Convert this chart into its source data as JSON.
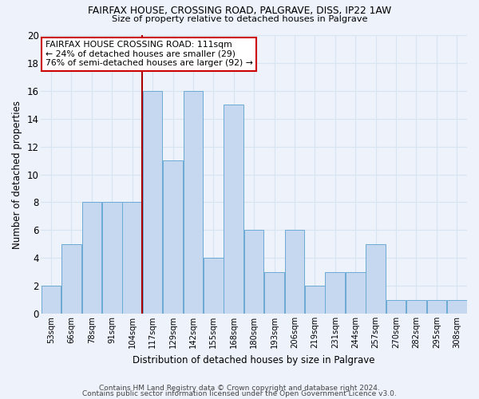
{
  "title1": "FAIRFAX HOUSE, CROSSING ROAD, PALGRAVE, DISS, IP22 1AW",
  "title2": "Size of property relative to detached houses in Palgrave",
  "xlabel": "Distribution of detached houses by size in Palgrave",
  "ylabel": "Number of detached properties",
  "categories": [
    "53sqm",
    "66sqm",
    "78sqm",
    "91sqm",
    "104sqm",
    "117sqm",
    "129sqm",
    "142sqm",
    "155sqm",
    "168sqm",
    "180sqm",
    "193sqm",
    "206sqm",
    "219sqm",
    "231sqm",
    "244sqm",
    "257sqm",
    "270sqm",
    "282sqm",
    "295sqm",
    "308sqm"
  ],
  "values": [
    2,
    5,
    8,
    8,
    8,
    16,
    11,
    16,
    4,
    15,
    6,
    3,
    6,
    2,
    3,
    3,
    5,
    1,
    1,
    1,
    1
  ],
  "bar_color": "#c5d8ef",
  "bar_edge_color": "#6aaad4",
  "background_color": "#edf2fb",
  "grid_color": "#d8e4f0",
  "annotation_text": "FAIRFAX HOUSE CROSSING ROAD: 111sqm\n← 24% of detached houses are smaller (29)\n76% of semi-detached houses are larger (92) →",
  "vline_x": 4.5,
  "vline_color": "#aa0000",
  "annotation_box_color": "#ffffff",
  "annotation_box_edge": "#cc0000",
  "footer1": "Contains HM Land Registry data © Crown copyright and database right 2024.",
  "footer2": "Contains public sector information licensed under the Open Government Licence v3.0.",
  "ylim": [
    0,
    20
  ],
  "yticks": [
    0,
    2,
    4,
    6,
    8,
    10,
    12,
    14,
    16,
    18,
    20
  ]
}
